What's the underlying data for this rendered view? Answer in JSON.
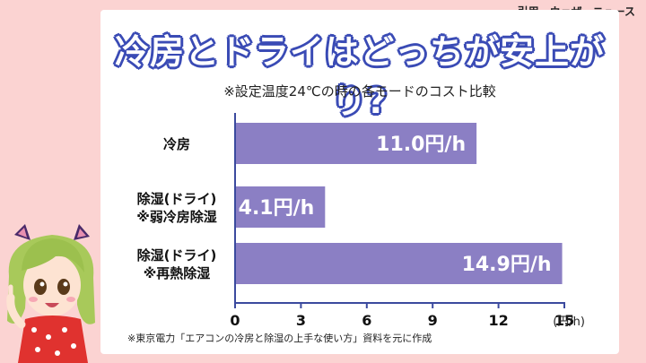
{
  "citation": "引用　ウェザーニュース",
  "chart_data": {
    "type": "bar",
    "orientation": "horizontal",
    "title": "冷房とドライはどっちが安上がり?",
    "subtitle": "※設定温度24℃の時の各モードのコスト比較",
    "categories": [
      [
        "冷房"
      ],
      [
        "除湿(ドライ)",
        "※弱冷房除湿"
      ],
      [
        "除湿(ドライ)",
        "※再熱除湿"
      ]
    ],
    "values": [
      11.0,
      4.1,
      14.9
    ],
    "data_labels": [
      "11.0円/h",
      "4.1円/h",
      "14.9円/h"
    ],
    "xlim": [
      0,
      15
    ],
    "xticks": [
      "0",
      "3",
      "6",
      "9",
      "12",
      "15"
    ],
    "xunit": "(円/h)",
    "source": "※東京電力「エアコンの冷房と除湿の上手な使い方」資料を元に作成",
    "bar_color": "#8b7fc4",
    "axis_color": "#3b4a9e",
    "title_outline_color": "#3a4bb5"
  }
}
